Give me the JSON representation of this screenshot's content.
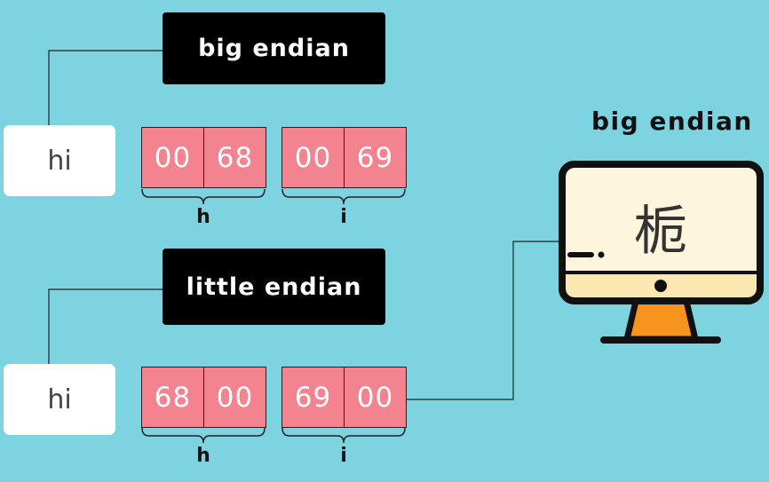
{
  "top": {
    "label": "big endian",
    "word": "hi",
    "bytes": [
      [
        "00",
        "68"
      ],
      [
        "00",
        "69"
      ]
    ],
    "chars": [
      "h",
      "i"
    ]
  },
  "bottom": {
    "label": "little endian",
    "word": "hi",
    "bytes": [
      [
        "68",
        "00"
      ],
      [
        "69",
        "00"
      ]
    ],
    "chars": [
      "h",
      "i"
    ]
  },
  "computer": {
    "title": "big endian",
    "display_char": "栀",
    "icon": "monitor-icon"
  },
  "colors": {
    "background": "#7dd4e0",
    "byte_fill": "#f2838f",
    "screen_fill": "#fdf6dc",
    "stand": "#f7941d"
  }
}
